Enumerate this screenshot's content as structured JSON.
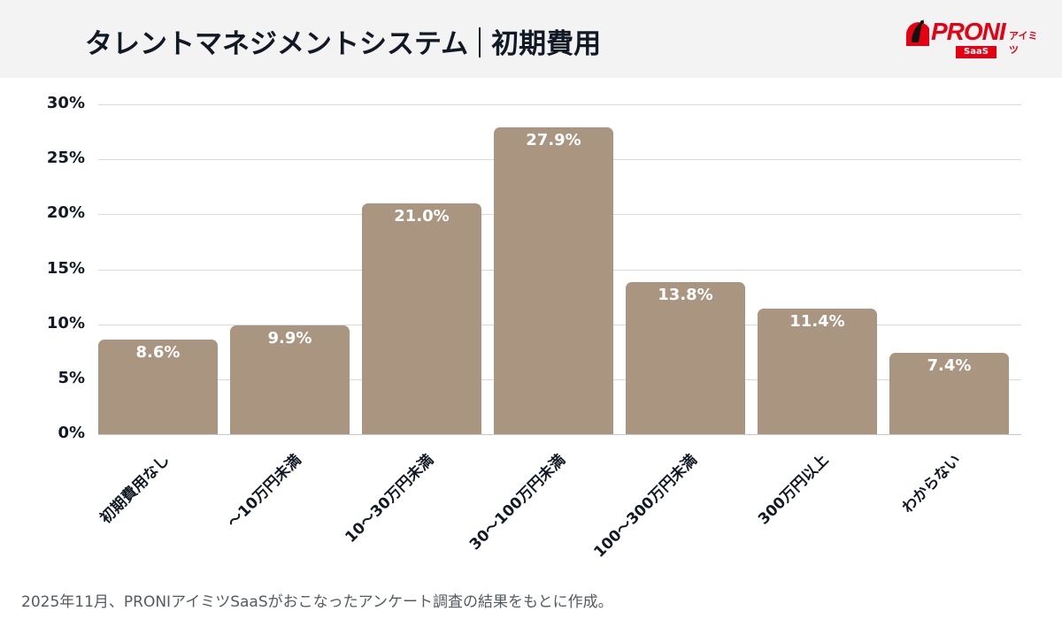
{
  "header": {
    "title_main": "タレントマネジメントシステム",
    "title_sub": "初期費用",
    "logo": {
      "brand": "PRONI",
      "kana": "アイミツ",
      "badge": "SaaS",
      "icon": "penguin-logo-icon",
      "brand_color": "#e60012"
    }
  },
  "chart_data": {
    "type": "bar",
    "title": "タレントマネジメントシステム｜初期費用",
    "categories": [
      "初期費用なし",
      "〜10万円未満",
      "10〜30万円未満",
      "30〜100万円未満",
      "100〜300万円未満",
      "300万円以上",
      "わからない"
    ],
    "values": [
      8.6,
      9.9,
      21.0,
      27.9,
      13.8,
      11.4,
      7.4
    ],
    "value_labels": [
      "8.6%",
      "9.9%",
      "21.0%",
      "27.9%",
      "13.8%",
      "11.4%",
      "7.4%"
    ],
    "xlabel": "",
    "ylabel": "",
    "ylim": [
      0,
      30
    ],
    "yticks": [
      "0%",
      "5%",
      "10%",
      "15%",
      "20%",
      "25%",
      "30%"
    ],
    "grid": true,
    "legend": "none",
    "bar_color": "#aa9581",
    "label_color": "#ffffff"
  },
  "footnote": "2025年11月、PRONIアイミツSaaSがおこなったアンケート調査の結果をもとに作成。"
}
